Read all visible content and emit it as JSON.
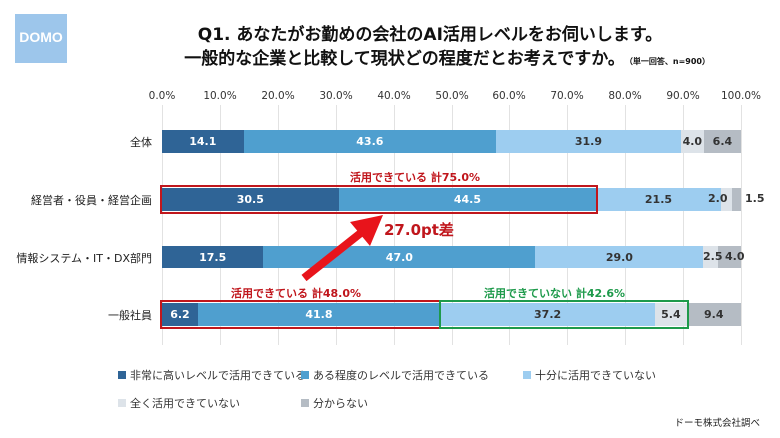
{
  "logo": {
    "text": "DOMO"
  },
  "title": {
    "line1": "Q1. あなたがお勤めの会社のAI活用レベルをお伺いします。",
    "line2": "一般的な企業と比較して現状どの程度だとお考えですか。",
    "note": "（単一回答、n=900）"
  },
  "axis": {
    "ticks": [
      "0.0%",
      "10.0%",
      "20.0%",
      "30.0%",
      "40.0%",
      "50.0%",
      "60.0%",
      "70.0%",
      "80.0%",
      "90.0%",
      "100.0%"
    ]
  },
  "rows": [
    {
      "label": "全体",
      "values": [
        "14.1",
        "43.6",
        "31.9",
        "4.0",
        "6.4"
      ]
    },
    {
      "label": "経営者・役員・経営企画",
      "values": [
        "30.5",
        "44.5",
        "21.5",
        "2.0",
        "1.5"
      ]
    },
    {
      "label": "情報システム・IT・DX部門",
      "values": [
        "17.5",
        "47.0",
        "29.0",
        "2.5",
        "4.0"
      ]
    },
    {
      "label": "一般社員",
      "values": [
        "6.2",
        "41.8",
        "37.2",
        "5.4",
        "9.4"
      ]
    }
  ],
  "annotations": {
    "exec_utilizing": "活用できている 計75.0%",
    "staff_utilizing": "活用できている 計48.0%",
    "staff_not_utilizing": "活用できていない 計42.6%",
    "difference": "27.0pt差"
  },
  "legend": [
    {
      "label": "非常に高いレベルで活用できている",
      "color": "#2f6496"
    },
    {
      "label": "ある程度のレベルで活用できている",
      "color": "#4f9fcf"
    },
    {
      "label": "十分に活用できていない",
      "color": "#9dcdf0"
    },
    {
      "label": "全く活用できていない",
      "color": "#dde3e9"
    },
    {
      "label": "分からない",
      "color": "#b5bcc4"
    }
  ],
  "source": "ドーモ株式会社調べ",
  "chart_data": {
    "type": "bar",
    "orientation": "horizontal-stacked-100",
    "title": "Q1. あなたがお勤めの会社のAI活用レベルをお伺いします。一般的な企業と比較して現状どの程度だとお考えですか。（単一回答、n=900）",
    "categories": [
      "全体",
      "経営者・役員・経営企画",
      "情報システム・IT・DX部門",
      "一般社員"
    ],
    "series": [
      {
        "name": "非常に高いレベルで活用できている",
        "values": [
          14.1,
          30.5,
          17.5,
          6.2
        ]
      },
      {
        "name": "ある程度のレベルで活用できている",
        "values": [
          43.6,
          44.5,
          47.0,
          41.8
        ]
      },
      {
        "name": "十分に活用できていない",
        "values": [
          31.9,
          21.5,
          29.0,
          37.2
        ]
      },
      {
        "name": "全く活用できていない",
        "values": [
          4.0,
          2.0,
          2.5,
          5.4
        ]
      },
      {
        "name": "分からない",
        "values": [
          6.4,
          1.5,
          4.0,
          9.4
        ]
      }
    ],
    "xlabel": "",
    "ylabel": "",
    "xlim": [
      0,
      100
    ],
    "x_ticks": [
      "0.0%",
      "10.0%",
      "20.0%",
      "30.0%",
      "40.0%",
      "50.0%",
      "60.0%",
      "70.0%",
      "80.0%",
      "90.0%",
      "100.0%"
    ],
    "grid": true,
    "legend_position": "bottom",
    "annotations": [
      "活用できている 計75.0%",
      "活用できている 計48.0%",
      "活用できていない 計42.6%",
      "27.0pt差"
    ]
  }
}
